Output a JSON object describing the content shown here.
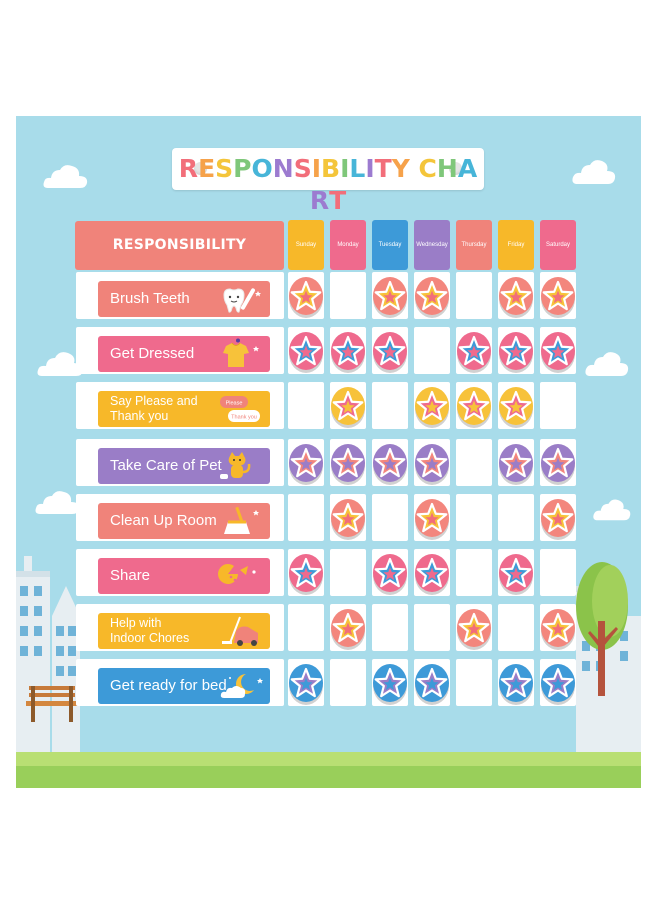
{
  "title": "RESPONSIBILITY CHART",
  "title_letter_colors": [
    "#f26e7a",
    "#f6a24a",
    "#f4c53a",
    "#7fc77a",
    "#47b5d8",
    "#9c7bd0",
    "#f26e7a",
    "#f6a24a",
    "#f4c53a",
    "#7fc77a",
    "#47b5d8",
    "#9c7bd0",
    "#f26e7a",
    "#f6a24a",
    "#f4c53a",
    "#7fc77a",
    "#47b5d8",
    "#9c7bd0",
    "#f26e7a",
    "#f6a24a"
  ],
  "header": {
    "responsibility_label": "RESPONSIBILITY"
  },
  "days": [
    {
      "label": "Sunday",
      "color": "#f7b829"
    },
    {
      "label": "Monday",
      "color": "#ef6a8d"
    },
    {
      "label": "Tuesday",
      "color": "#3d9ad8"
    },
    {
      "label": "Wednesday",
      "color": "#9a7dc7"
    },
    {
      "label": "Thursday",
      "color": "#f0837a"
    },
    {
      "label": "Friday",
      "color": "#f7b829"
    },
    {
      "label": "Saturday",
      "color": "#ef6a8d"
    }
  ],
  "rows": [
    {
      "label": "Brush Teeth",
      "color": "#f0837a",
      "icon": "tooth-icon",
      "marks": [
        "coral",
        "",
        "coral",
        "coral",
        "",
        "coral",
        "coral"
      ]
    },
    {
      "label": "Get Dressed",
      "color": "#ef6a8d",
      "icon": "shirt-icon",
      "marks": [
        "pink",
        "pink",
        "pink",
        "",
        "pink",
        "pink",
        "pink"
      ]
    },
    {
      "label": "Say Please and\nThank you",
      "color": "#f7b829",
      "icon": "speech-bubble-icon",
      "icon_text": [
        "Please",
        "Thank you"
      ],
      "marks": [
        "",
        "yellow",
        "",
        "yellow",
        "yellow",
        "yellow",
        ""
      ]
    },
    {
      "label": "Take Care of Pet",
      "color": "#9a7dc7",
      "icon": "cat-icon",
      "marks": [
        "purple",
        "purple",
        "purple",
        "purple",
        "",
        "purple",
        "purple"
      ]
    },
    {
      "label": "Clean Up Room",
      "color": "#f0837a",
      "icon": "broom-icon",
      "marks": [
        "",
        "coral",
        "",
        "coral",
        "",
        "",
        "coral"
      ]
    },
    {
      "label": "Share",
      "color": "#ef6a8d",
      "icon": "pie-share-icon",
      "marks": [
        "pink",
        "",
        "pink",
        "pink",
        "",
        "pink",
        ""
      ]
    },
    {
      "label": "Help with\nIndoor Chores",
      "color": "#f7b829",
      "icon": "vacuum-icon",
      "marks": [
        "",
        "coral",
        "",
        "",
        "coral",
        "",
        "coral"
      ]
    },
    {
      "label": "Get ready  for bed",
      "color": "#3d9ad8",
      "icon": "moon-cloud-icon",
      "marks": [
        "blue",
        "",
        "blue",
        "blue",
        "",
        "blue",
        "blue"
      ]
    }
  ],
  "token_colors": {
    "coral": {
      "fill": "#f3867d",
      "star": "#f7c23a",
      "inner": "#f26e7a"
    },
    "pink": {
      "fill": "#ef6a8d",
      "star": "#3d9ad8",
      "inner": "#ef6a8d"
    },
    "yellow": {
      "fill": "#f7c23a",
      "star": "#ef6a8d",
      "inner": "#f7c23a"
    },
    "purple": {
      "fill": "#9a7dc7",
      "star": "#f3867d",
      "inner": "#9a7dc7"
    },
    "blue": {
      "fill": "#3d9ad8",
      "star": "#9a7dc7",
      "inner": "#3d9ad8"
    }
  }
}
